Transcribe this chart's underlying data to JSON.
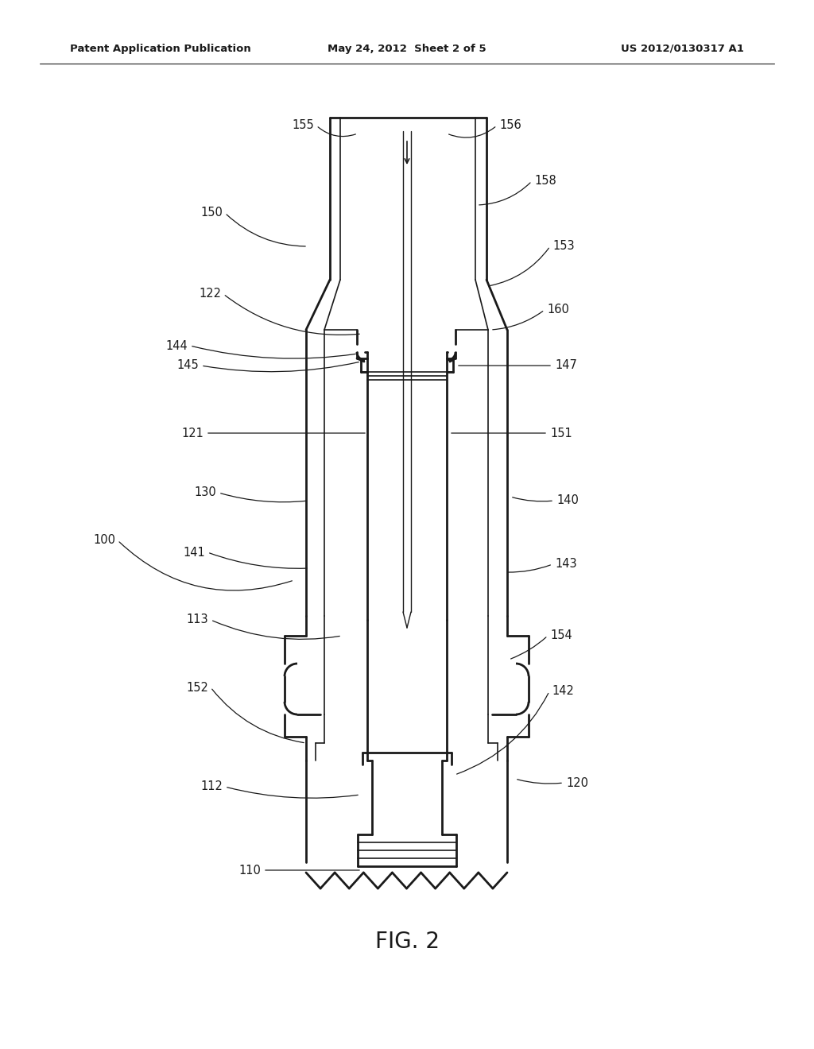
{
  "bg_color": "#ffffff",
  "line_color": "#1a1a1a",
  "header_left": "Patent Application Publication",
  "header_mid": "May 24, 2012  Sheet 2 of 5",
  "header_right": "US 2012/0130317 A1",
  "fig_label": "FIG. 2",
  "lw_main": 2.0,
  "lw_thin": 1.2,
  "lw_label": 0.9
}
